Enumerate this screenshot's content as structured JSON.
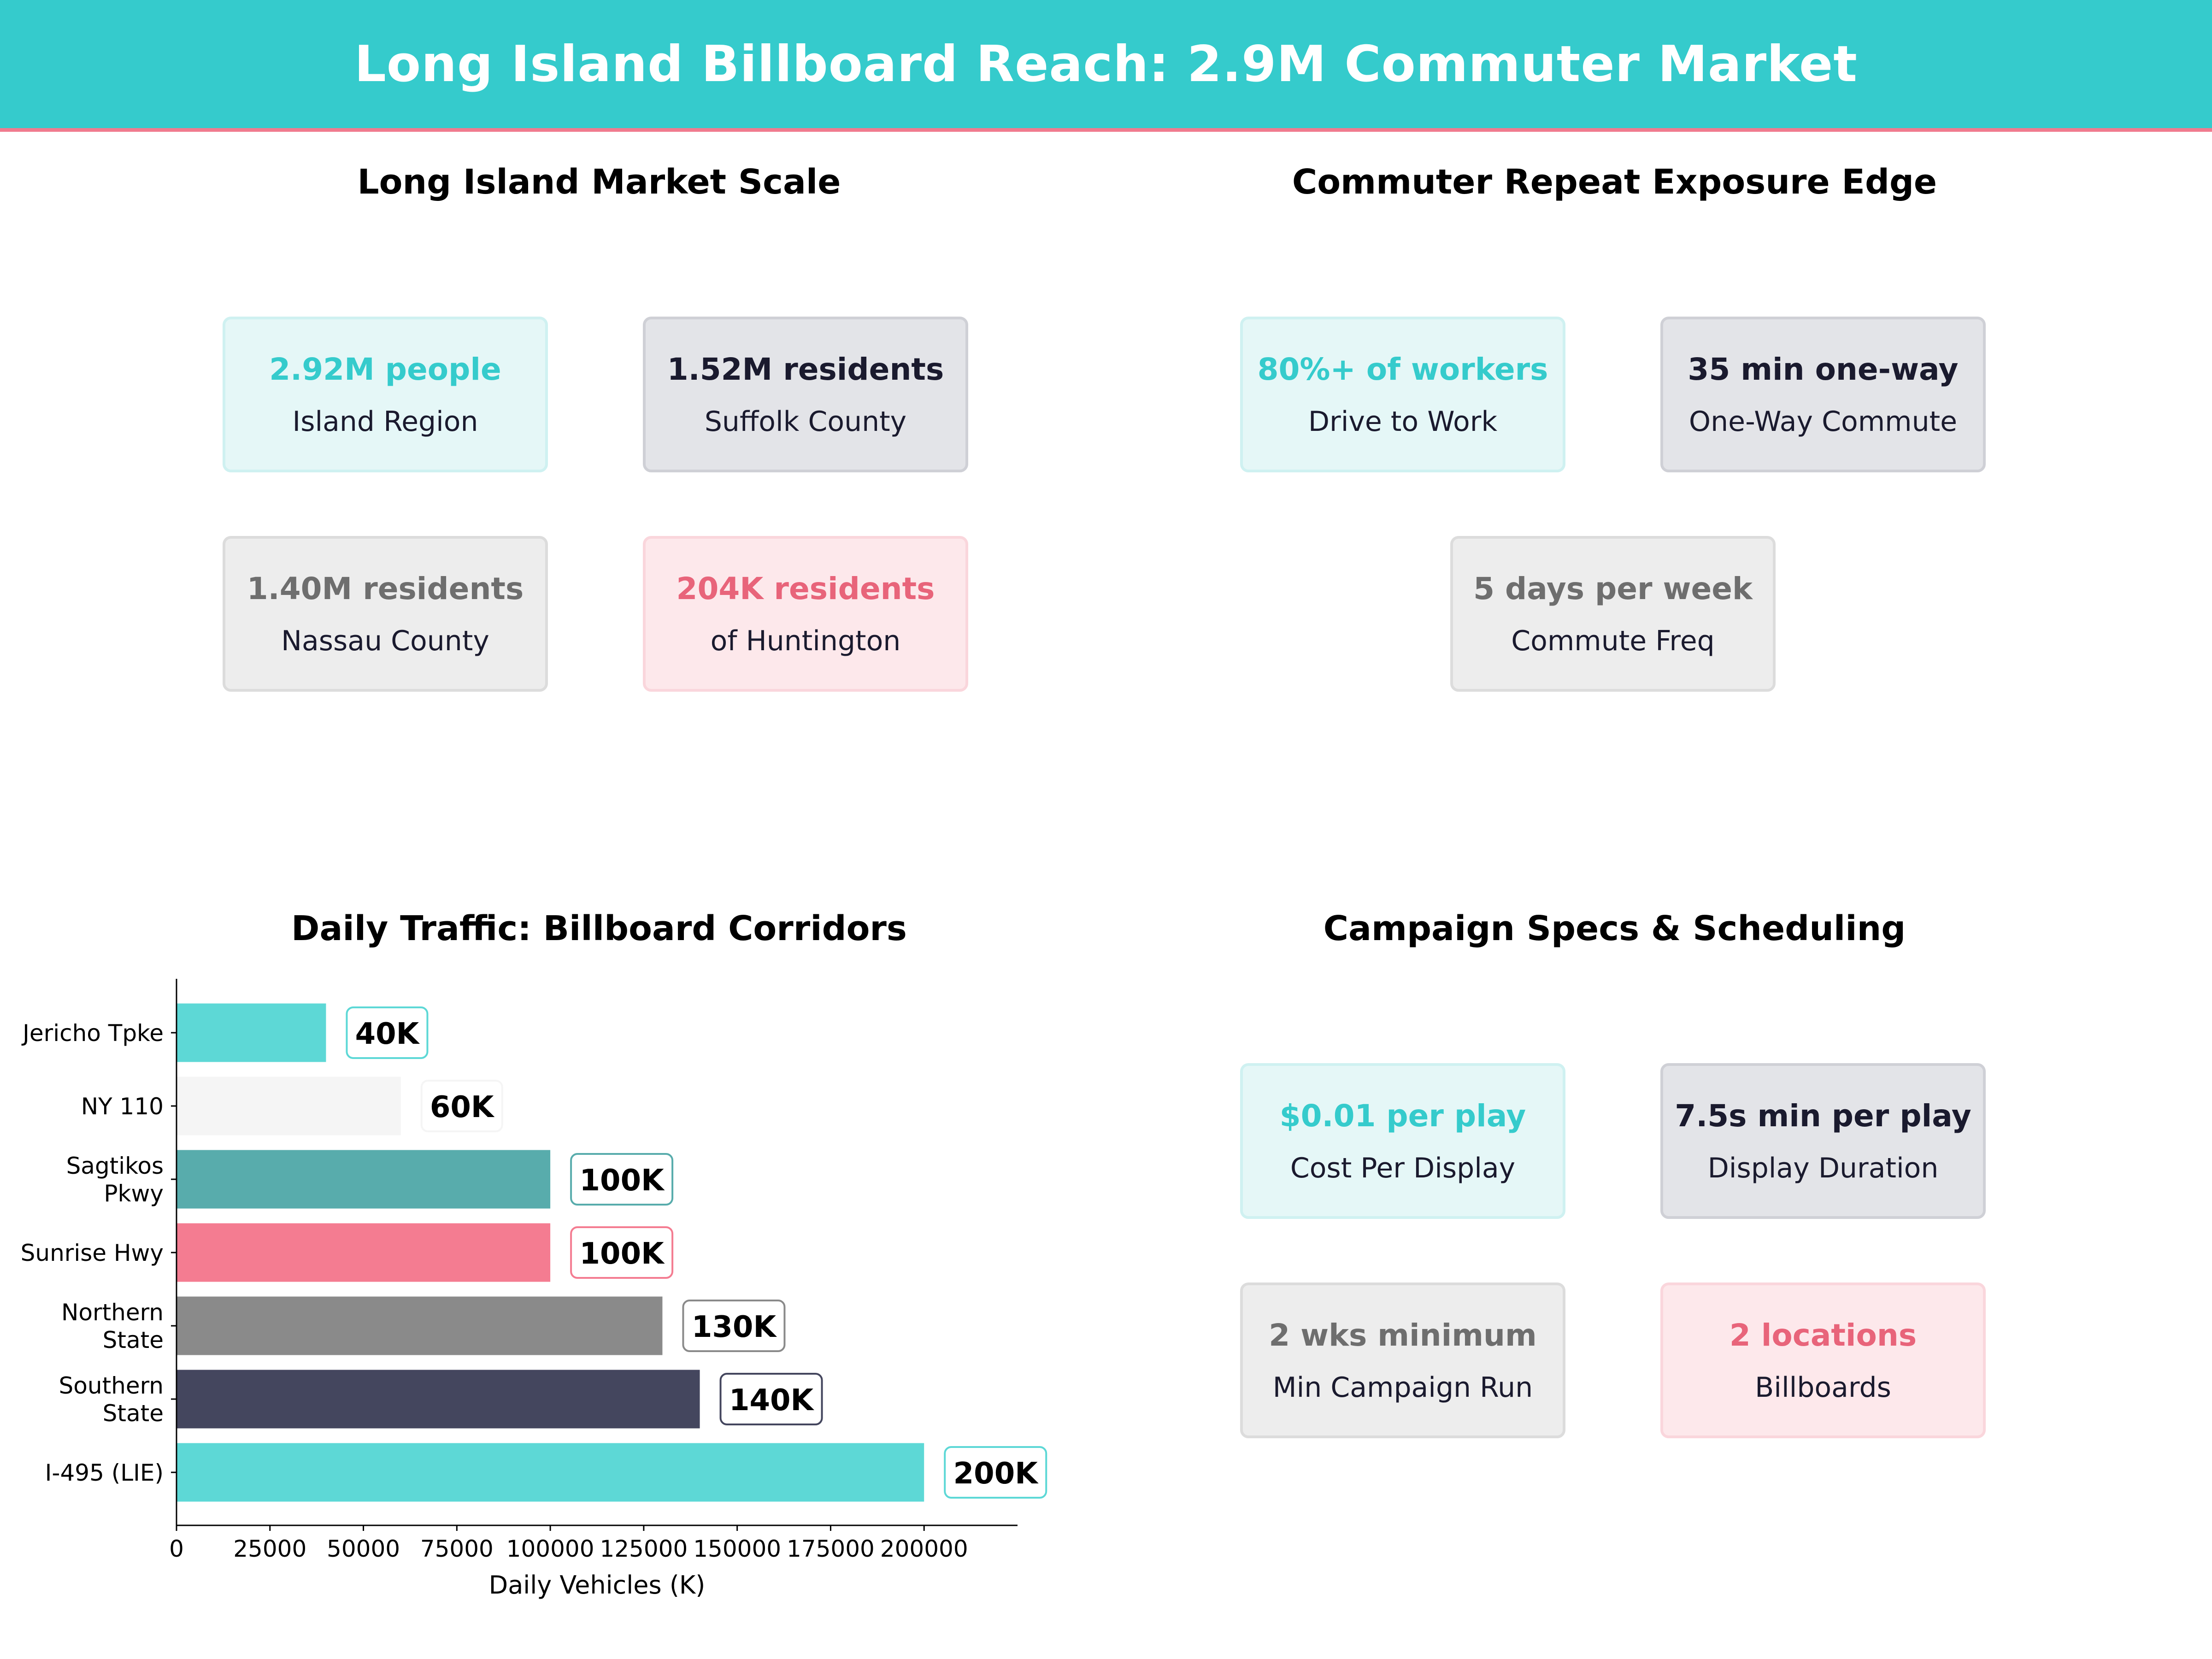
{
  "banner": {
    "title": "Long Island Billboard Reach: 2.9M Commuter Market",
    "color": "#35CBCC",
    "accent": "#F07B8E"
  },
  "panels": {
    "market_scale": {
      "title": "Long Island Market Scale",
      "cards": [
        {
          "value": "2.92M people",
          "label": "Island Region",
          "style": "teal"
        },
        {
          "value": "1.52M residents",
          "label": "Suffolk County",
          "style": "navy"
        },
        {
          "value": "1.40M residents",
          "label": "Nassau County",
          "style": "gray"
        },
        {
          "value": "204K residents",
          "label": "of Huntington",
          "style": "pink"
        }
      ]
    },
    "repeat_exposure": {
      "title": "Commuter Repeat Exposure Edge",
      "cards": [
        {
          "value": "80%+ of workers",
          "label": "Drive to Work",
          "style": "teal"
        },
        {
          "value": "35 min one-way",
          "label": "One-Way Commute",
          "style": "navy"
        },
        {
          "value": "5 days per week",
          "label": "Commute Freq",
          "style": "gray"
        }
      ]
    },
    "traffic": {
      "title": "Daily Traffic: Billboard Corridors"
    },
    "campaign": {
      "title": "Campaign Specs & Scheduling",
      "cards": [
        {
          "value": "$0.01 per play",
          "label": "Cost Per Display",
          "style": "teal"
        },
        {
          "value": "7.5s min per play",
          "label": "Display Duration",
          "style": "navy"
        },
        {
          "value": "2 wks minimum",
          "label": "Min Campaign Run",
          "style": "gray"
        },
        {
          "value": "2 locations",
          "label": "Billboards",
          "style": "pink"
        }
      ]
    }
  },
  "chart_data": {
    "type": "bar",
    "orientation": "horizontal",
    "title": "Daily Traffic: Billboard Corridors",
    "xlabel": "Daily Vehicles (K)",
    "ylabel": "",
    "xlim": [
      0,
      225000
    ],
    "xticks": [
      0,
      25000,
      50000,
      75000,
      100000,
      125000,
      150000,
      175000,
      200000
    ],
    "categories": [
      "Jericho Tpke",
      "NY 110",
      "Sagtikos Pkwy",
      "Sunrise Hwy",
      "Northern State",
      "Southern State",
      "I-495 (LIE)"
    ],
    "category_lines": [
      [
        "Jericho Tpke"
      ],
      [
        "NY 110"
      ],
      [
        "Sagtikos",
        "Pkwy"
      ],
      [
        "Sunrise Hwy"
      ],
      [
        "Northern",
        "State"
      ],
      [
        "Southern",
        "State"
      ],
      [
        "I-495 (LIE)"
      ]
    ],
    "values": [
      40000,
      60000,
      100000,
      100000,
      130000,
      140000,
      200000
    ],
    "data_labels": [
      "40K",
      "60K",
      "100K",
      "100K",
      "130K",
      "140K",
      "200K"
    ],
    "colors": [
      "#5DD8D6",
      "#F5F5F5",
      "#58ACAC",
      "#F47C91",
      "#8A8A8A",
      "#44465E",
      "#5DD8D6"
    ],
    "label_borders": [
      "#5DD8D6",
      "#F5F5F5",
      "#58ACAC",
      "#F47C91",
      "#8A8A8A",
      "#44465E",
      "#5DD8D6"
    ],
    "grid": false
  }
}
